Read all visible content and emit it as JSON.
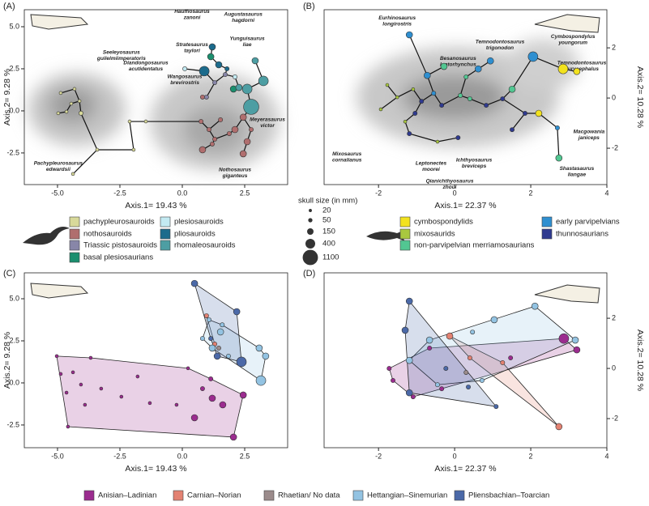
{
  "chart_data": [
    {
      "type": "scatter",
      "panel": "(A)",
      "overlay": "tree",
      "yaxis_position": "left",
      "xlabel": "Axis.1= 19.43 %",
      "ylabel": "Axis.2= 9.28 %",
      "xlim": [
        -6.33,
        4.22
      ],
      "ylim": [
        -4.38,
        6.01
      ],
      "xticks": [
        {
          "value": -5,
          "label": "-5.0"
        },
        -2.5,
        {
          "value": 0,
          "label": "0.0"
        },
        2.5
      ],
      "yticks": [
        -2.5,
        {
          "value": 0,
          "label": "0.0"
        },
        2.5,
        {
          "value": 5,
          "label": "5.0"
        }
      ],
      "series": [
        {
          "name": "pachypleurosauroids",
          "color": "#d8d99a",
          "x": [
            -4.87,
            -4.45,
            -4.12,
            -4.64,
            -4.06,
            -4.97,
            -4.32,
            -2.11,
            -1.95,
            -3.41,
            -4.38,
            -1.46
          ],
          "y": [
            1.06,
            0.43,
            0.58,
            -0.05,
            -0.14,
            -0.14,
            1.3,
            -0.63,
            -2.31,
            -2.31,
            -3.75,
            -0.63
          ],
          "size": [
            20,
            20,
            20,
            20,
            50,
            20,
            20,
            20,
            20,
            20,
            20,
            20
          ]
        },
        {
          "name": "nothosauroids",
          "color": "#b06e6e",
          "x": [
            0.75,
            1.07,
            1.3,
            0.81,
            1.53,
            2.11,
            2.6,
            2.44,
            1.2,
            1.88,
            0.81,
            2.44,
            2.76
          ],
          "y": [
            -0.63,
            -1.11,
            -1.68,
            -2.31,
            -0.53,
            -1.11,
            -1.83,
            -2.55,
            -1.97,
            -1.35,
            0.82,
            -0.38,
            -1.11
          ],
          "size": [
            50,
            50,
            50,
            150,
            50,
            150,
            150,
            150,
            50,
            50,
            50,
            150,
            50
          ]
        },
        {
          "name": "Triassic pistosauroids",
          "color": "#8886a8",
          "x": [
            1.3,
            1.72,
            0.97
          ],
          "y": [
            1.68,
            2.16,
            0.82
          ],
          "size": [
            50,
            50,
            50
          ]
        },
        {
          "name": "basal plesiosaurians",
          "color": "#1b8f6e",
          "x": [
            1.14,
            2.05
          ],
          "y": [
            3.22,
            1.3
          ],
          "size": [
            150,
            150
          ]
        },
        {
          "name": "plesiosauroids",
          "color": "#c3eaf2",
          "x": [
            0.1,
            2.11
          ],
          "y": [
            2.5,
            2.02
          ],
          "size": [
            50,
            50
          ]
        },
        {
          "name": "pliosauroids",
          "color": "#1c6b8c",
          "x": [
            1.2,
            1.46,
            0.88,
            1.79
          ],
          "y": [
            3.8,
            2.74,
            2.36,
            2.5
          ],
          "size": [
            150,
            150,
            400,
            50
          ]
        },
        {
          "name": "rhomaleosauroids",
          "color": "#4d9ea3",
          "x": [
            2.92,
            3.25,
            2.76,
            2.6,
            2.27
          ],
          "y": [
            2.98,
            1.78,
            0.24,
            1.3,
            1.39
          ],
          "size": [
            150,
            400,
            1100,
            400,
            150
          ]
        }
      ],
      "annotations": [
        {
          "text": [
            "Hauffiosaurus",
            "zanoni"
          ],
          "x": 0.39,
          "y": 5.91,
          "color": "#1c6b8c"
        },
        {
          "text": [
            "Stratesaurus",
            "taylori"
          ],
          "x": 0.39,
          "y": 3.94,
          "color": "#1b8f6e"
        },
        {
          "text": [
            "Augustasaurus",
            "hagdorni"
          ],
          "x": 2.44,
          "y": 5.72,
          "color": "#777777"
        },
        {
          "text": [
            "Yunguisaurus",
            "liae"
          ],
          "x": 2.6,
          "y": 4.28,
          "color": "#777777"
        },
        {
          "text": [
            "Seeleyosaurus",
            "guilelmiimperatoris"
          ],
          "x": -2.44,
          "y": 3.46,
          "color": "#7fcfe0"
        },
        {
          "text": [
            "Diandongosaurus",
            "acutidentatus"
          ],
          "x": -1.46,
          "y": 2.84,
          "color": "#c8c98a"
        },
        {
          "text": [
            "Wangosaurus",
            "brevirostris"
          ],
          "x": 0.1,
          "y": 2.02,
          "color": "#777777"
        },
        {
          "text": [
            "Meyerasaurus",
            "victor"
          ],
          "x": 3.41,
          "y": -0.53,
          "color": "#4d9ea3"
        },
        {
          "text": [
            "Nothosaurus",
            "giganteus"
          ],
          "x": 2.11,
          "y": -3.51,
          "color": "#b06e6e"
        },
        {
          "text": [
            "Pachypleurosaurus",
            "edwardsii"
          ],
          "x": -4.97,
          "y": -3.13,
          "color": "#c8c98a"
        }
      ]
    },
    {
      "type": "scatter",
      "panel": "(B)",
      "overlay": "tree",
      "yaxis_position": "right",
      "xlabel": "Axis.1= 22.37 %",
      "ylabel": "Axis.2= 10.28 %",
      "xlim": [
        -3.43,
        4.0
      ],
      "ylim": [
        -3.45,
        3.52
      ],
      "xticks": [
        -2,
        0,
        2,
        4
      ],
      "yticks": [
        -2,
        0,
        2
      ],
      "series": [
        {
          "name": "cymbospondylids",
          "color": "#f2e21e",
          "x": [
            2.85,
            3.21,
            2.21
          ],
          "y": [
            1.16,
            1.06,
            -0.61
          ],
          "size": [
            400,
            150,
            150
          ]
        },
        {
          "name": "mixosaurids",
          "color": "#a9c83f",
          "x": [
            -1.94,
            -1.77,
            -1.51,
            -1.09,
            -0.45,
            -1.3
          ],
          "y": [
            -0.45,
            0.52,
            0.03,
            0.35,
            -1.74,
            -0.94
          ],
          "size": [
            20,
            20,
            20,
            20,
            20,
            20
          ]
        },
        {
          "name": "non-parvipelvian merriamosaurians",
          "color": "#52c792",
          "x": [
            -0.28,
            0.4,
            1.51,
            0.15,
            2.74,
            0.3
          ],
          "y": [
            1.26,
            -0.03,
            0.35,
            0.1,
            -2.39,
            0.84
          ],
          "size": [
            150,
            50,
            150,
            50,
            150,
            50
          ]
        },
        {
          "name": "early parvipelvians",
          "color": "#2f8fd0",
          "x": [
            -1.19,
            -0.55,
            0.62,
            2.06,
            0.94,
            2.7,
            -0.72
          ],
          "y": [
            2.52,
            0.19,
            1.16,
            1.65,
            1.48,
            -1.19,
            0.9
          ],
          "size": [
            150,
            50,
            150,
            400,
            150,
            50,
            150
          ]
        },
        {
          "name": "thunnosaurians",
          "color": "#2f3a8f",
          "x": [
            -1.04,
            -0.87,
            -0.34,
            0.83,
            1.26,
            1.51,
            0.09,
            -1.19,
            1.85
          ],
          "y": [
            -0.61,
            -0.13,
            -0.29,
            -0.29,
            -0.03,
            -1.26,
            -1.58,
            -1.42,
            -0.61
          ],
          "size": [
            50,
            50,
            50,
            50,
            50,
            50,
            50,
            50,
            50
          ]
        }
      ],
      "annotations": [
        {
          "text": [
            "Eurhinosaurus",
            "longirostris"
          ],
          "x": -1.51,
          "y": 3.19,
          "color": "#2f8fd0"
        },
        {
          "text": [
            "Temnodontosaurus",
            "trigonodon"
          ],
          "x": 1.19,
          "y": 2.23,
          "color": "#2f8fd0"
        },
        {
          "text": [
            "Cymbospondylus",
            "youngorum"
          ],
          "x": 3.11,
          "y": 2.45,
          "color": "#d8c800"
        },
        {
          "text": [
            "Besanosaurus",
            "leptorhynchus"
          ],
          "x": 0.09,
          "y": 1.58,
          "color": "#52c792"
        },
        {
          "text": [
            "Temnodontosaurus",
            "eurycephalus"
          ],
          "x": 3.34,
          "y": 1.39,
          "color": "#2f8fd0"
        },
        {
          "text": [
            "Mixosaurus",
            "cornalianus"
          ],
          "x": -2.83,
          "y": -2.23,
          "color": "#a9c83f"
        },
        {
          "text": [
            "Leptonectes",
            "moorei"
          ],
          "x": -0.62,
          "y": -2.61,
          "color": "#2f8fd0"
        },
        {
          "text": [
            "Ichthyosaurus",
            "breviceps"
          ],
          "x": 0.51,
          "y": -2.48,
          "color": "#2f3a8f"
        },
        {
          "text": [
            "Qianichthyosaurus",
            "zhoui"
          ],
          "x": -0.13,
          "y": -3.32,
          "color": "#52c792"
        },
        {
          "text": [
            "Macgowania",
            "janiceps"
          ],
          "x": 3.53,
          "y": -1.35,
          "color": "#2f8fd0"
        },
        {
          "text": [
            "Shastasaurus",
            "liangae"
          ],
          "x": 3.21,
          "y": -2.81,
          "color": "#52c792"
        }
      ]
    },
    {
      "type": "scatter",
      "panel": "(C)",
      "overlay": "hull",
      "yaxis_position": "left",
      "xlabel": "Axis.1= 19.43 %",
      "ylabel": "Axis.2= 9.28 %",
      "xlim": [
        -6.33,
        4.22
      ],
      "ylim": [
        -3.85,
        6.54
      ],
      "xticks": [
        {
          "value": -5,
          "label": "-5.0"
        },
        -2.5,
        {
          "value": 0,
          "label": "0.0"
        },
        2.5
      ],
      "yticks": [
        -2.5,
        {
          "value": 0,
          "label": "0.0"
        },
        2.5,
        {
          "value": 5,
          "label": "5.0"
        }
      ],
      "series": [
        {
          "name": "Anisian–Ladinian",
          "color": "#9b2c8f",
          "x": [
            -4.87,
            -4.38,
            -5.03,
            -4.06,
            -4.64,
            -3.9,
            -3.25,
            -2.44,
            -1.3,
            -1.79,
            -3.67,
            0.23,
            0.81,
            1.2,
            1.62,
            0.49,
            2.44,
            2.05,
            1.14,
            -0.23,
            -4.58
          ],
          "y": [
            0.53,
            0.63,
            1.59,
            -0.1,
            -0.58,
            -1.3,
            -0.34,
            -0.82,
            -1.2,
            0.38,
            1.49,
            0.87,
            -0.34,
            -0.91,
            -1.3,
            -2.07,
            -0.72,
            -3.22,
            0.24,
            -1.3,
            -2.6
          ],
          "size": [
            20,
            20,
            20,
            20,
            20,
            20,
            20,
            20,
            20,
            20,
            20,
            20,
            50,
            150,
            150,
            150,
            150,
            150,
            50,
            20,
            20
          ]
        },
        {
          "name": "Carnian–Norian",
          "color": "#e38272",
          "x": [
            0.97,
            1.3
          ],
          "y": [
            3.99,
            2.31
          ],
          "size": [
            50,
            50
          ]
        },
        {
          "name": "Rhaetian/ No data",
          "color": "#9b8b8b",
          "x": [
            1.46
          ],
          "y": [
            2.07
          ],
          "size": [
            50
          ]
        },
        {
          "name": "Hettangian–Sinemurian",
          "color": "#93c3e2",
          "x": [
            1.07,
            1.53,
            0.81,
            1.2,
            1.85,
            3.08,
            3.34,
            3.15,
            1.6
          ],
          "y": [
            3.75,
            3.03,
            2.64,
            2.07,
            1.59,
            2.07,
            1.59,
            0.14,
            3.45
          ],
          "size": [
            50,
            150,
            50,
            150,
            50,
            150,
            150,
            400,
            50
          ]
        },
        {
          "name": "Pliensbachian–Toarcian",
          "color": "#4b69a8",
          "x": [
            0.49,
            2.18,
            1.4,
            2.37,
            1.14
          ],
          "y": [
            5.91,
            4.23,
            1.59,
            1.25,
            2.64
          ],
          "size": [
            150,
            150,
            150,
            400,
            50
          ]
        }
      ]
    },
    {
      "type": "scatter",
      "panel": "(D)",
      "overlay": "hull",
      "yaxis_position": "right",
      "xlabel": "Axis.1= 22.37 %",
      "ylabel": "Axis.2= 10.28 %",
      "xlim": [
        -3.43,
        4.0
      ],
      "ylim": [
        -3.16,
        3.81
      ],
      "xticks": [
        -2,
        0,
        2,
        4
      ],
      "yticks": [
        -2,
        0,
        2
      ],
      "series": [
        {
          "name": "Anisian–Ladinian",
          "color": "#9b2c8f",
          "x": [
            -1.72,
            -1.62,
            2.87,
            3.21,
            -0.66,
            1.47,
            -0.34,
            -1.09
          ],
          "y": [
            0,
            -0.48,
            1.19,
            0.74,
            0.81,
            0.42,
            -0.81,
            -1.13
          ],
          "size": [
            50,
            50,
            400,
            150,
            50,
            50,
            50,
            50
          ]
        },
        {
          "name": "Carnian–Norian",
          "color": "#e38272",
          "x": [
            -0.13,
            2.74,
            0.4,
            1.26
          ],
          "y": [
            1.29,
            -2.32,
            0.42,
            0.23
          ],
          "size": [
            150,
            150,
            50,
            50
          ]
        },
        {
          "name": "Rhaetian/ No data",
          "color": "#9b8b8b",
          "x": [
            0.3
          ],
          "y": [
            -0.16
          ],
          "size": [
            50
          ]
        },
        {
          "name": "Hettangian–Sinemurian",
          "color": "#93c3e2",
          "x": [
            -0.66,
            -1.19,
            0.47,
            1.04,
            2.11,
            3.17,
            0.72,
            -0.45
          ],
          "y": [
            1.13,
            0.32,
            1.45,
            1.94,
            2.48,
            1.13,
            -0.48,
            -0.65
          ],
          "size": [
            150,
            150,
            50,
            150,
            150,
            150,
            50,
            50
          ]
        },
        {
          "name": "Pliensbachian–Toarcian",
          "color": "#4b69a8",
          "x": [
            -1.19,
            -1.19,
            0.36,
            -0.23,
            1.09,
            -1.3
          ],
          "y": [
            2.68,
            -0.97,
            -0.74,
            0,
            -1.52,
            1.52
          ],
          "size": [
            150,
            150,
            50,
            50,
            50,
            150
          ]
        }
      ]
    }
  ],
  "size_legend": {
    "title": "skull size (in mm)",
    "values": [
      20,
      50,
      150,
      400,
      1100
    ]
  }
}
